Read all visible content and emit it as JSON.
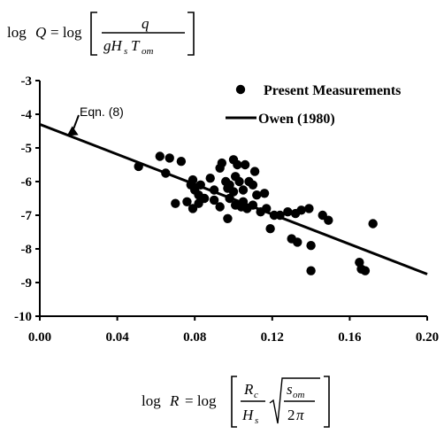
{
  "chart_data": {
    "type": "scatter",
    "x_label_text": "log R = log[ (R_c / H_s) sqrt(s_om / 2π) ]",
    "y_label_text": "log Q = log[ q / (g H_s T_om) ]",
    "xlim": [
      0.0,
      0.2
    ],
    "ylim": [
      -10,
      -3
    ],
    "x_ticks": [
      "0.00",
      "0.04",
      "0.08",
      "0.12",
      "0.16",
      "0.20"
    ],
    "y_ticks": [
      "-3",
      "-4",
      "-5",
      "-6",
      "-7",
      "-8",
      "-9",
      "-10"
    ],
    "grid": false,
    "legend_position": "top-right",
    "series": [
      {
        "name": "Present Measurements",
        "kind": "points",
        "points": [
          [
            0.051,
            -5.55
          ],
          [
            0.062,
            -5.25
          ],
          [
            0.065,
            -5.75
          ],
          [
            0.067,
            -5.3
          ],
          [
            0.07,
            -6.65
          ],
          [
            0.073,
            -5.4
          ],
          [
            0.076,
            -6.6
          ],
          [
            0.078,
            -6.1
          ],
          [
            0.079,
            -5.95
          ],
          [
            0.079,
            -6.8
          ],
          [
            0.08,
            -6.25
          ],
          [
            0.082,
            -6.4
          ],
          [
            0.082,
            -6.65
          ],
          [
            0.083,
            -6.1
          ],
          [
            0.085,
            -6.5
          ],
          [
            0.088,
            -5.9
          ],
          [
            0.09,
            -6.55
          ],
          [
            0.09,
            -6.25
          ],
          [
            0.093,
            -5.6
          ],
          [
            0.093,
            -6.75
          ],
          [
            0.094,
            -5.45
          ],
          [
            0.096,
            -6.0
          ],
          [
            0.097,
            -6.2
          ],
          [
            0.097,
            -7.1
          ],
          [
            0.098,
            -6.5
          ],
          [
            0.098,
            -6.1
          ],
          [
            0.1,
            -5.35
          ],
          [
            0.1,
            -6.3
          ],
          [
            0.101,
            -5.85
          ],
          [
            0.101,
            -6.7
          ],
          [
            0.102,
            -5.5
          ],
          [
            0.103,
            -6.0
          ],
          [
            0.104,
            -6.75
          ],
          [
            0.105,
            -6.25
          ],
          [
            0.105,
            -6.6
          ],
          [
            0.106,
            -5.5
          ],
          [
            0.107,
            -6.8
          ],
          [
            0.108,
            -6.0
          ],
          [
            0.11,
            -6.1
          ],
          [
            0.11,
            -6.7
          ],
          [
            0.111,
            -5.7
          ],
          [
            0.112,
            -6.4
          ],
          [
            0.114,
            -6.9
          ],
          [
            0.116,
            -6.35
          ],
          [
            0.117,
            -6.8
          ],
          [
            0.119,
            -7.4
          ],
          [
            0.121,
            -7.0
          ],
          [
            0.124,
            -7.0
          ],
          [
            0.128,
            -6.9
          ],
          [
            0.13,
            -7.7
          ],
          [
            0.132,
            -6.95
          ],
          [
            0.133,
            -7.8
          ],
          [
            0.135,
            -6.85
          ],
          [
            0.139,
            -6.8
          ],
          [
            0.14,
            -7.9
          ],
          [
            0.14,
            -8.65
          ],
          [
            0.146,
            -7.0
          ],
          [
            0.149,
            -7.15
          ],
          [
            0.165,
            -8.4
          ],
          [
            0.166,
            -8.6
          ],
          [
            0.168,
            -8.65
          ],
          [
            0.172,
            -7.25
          ]
        ]
      },
      {
        "name": "Owen (1980)",
        "kind": "line",
        "points": [
          [
            0.0,
            -4.3
          ],
          [
            0.2,
            -8.75
          ]
        ]
      }
    ],
    "annotations": [
      {
        "text": "Eqn. (8)",
        "points_to": [
          0.014,
          -4.64
        ]
      }
    ]
  }
}
